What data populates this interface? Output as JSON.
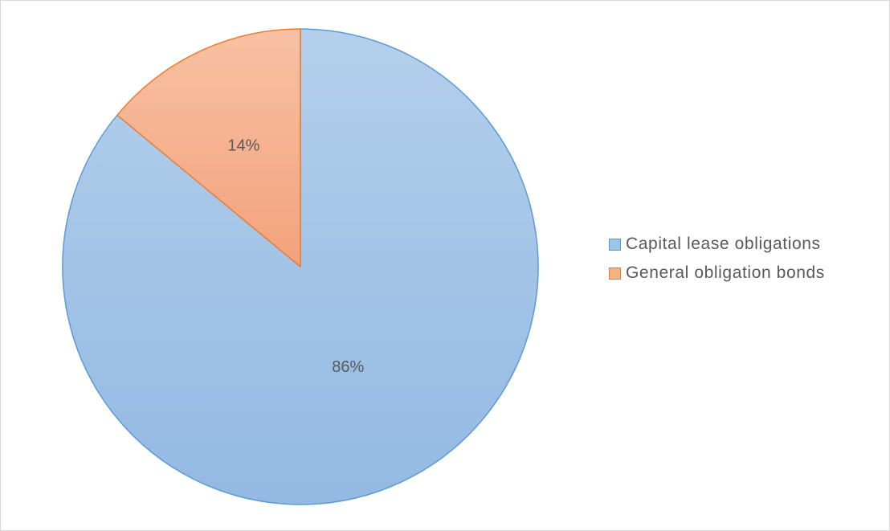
{
  "chart_data": {
    "type": "pie",
    "title": "",
    "categories": [
      "Capital lease obligations",
      "General obligation bonds"
    ],
    "values": [
      86,
      14
    ],
    "labels": [
      "86%",
      "14%"
    ],
    "colors": {
      "Capital lease obligations": {
        "fill": "#9dc3e6",
        "fill_light": "#b4cfeb",
        "stroke": "#5b9bd5"
      },
      "General obligation bonds": {
        "fill": "#f4b183",
        "fill_light": "#f8bfa0",
        "stroke": "#ed7d31"
      }
    },
    "legend_position": "right"
  }
}
